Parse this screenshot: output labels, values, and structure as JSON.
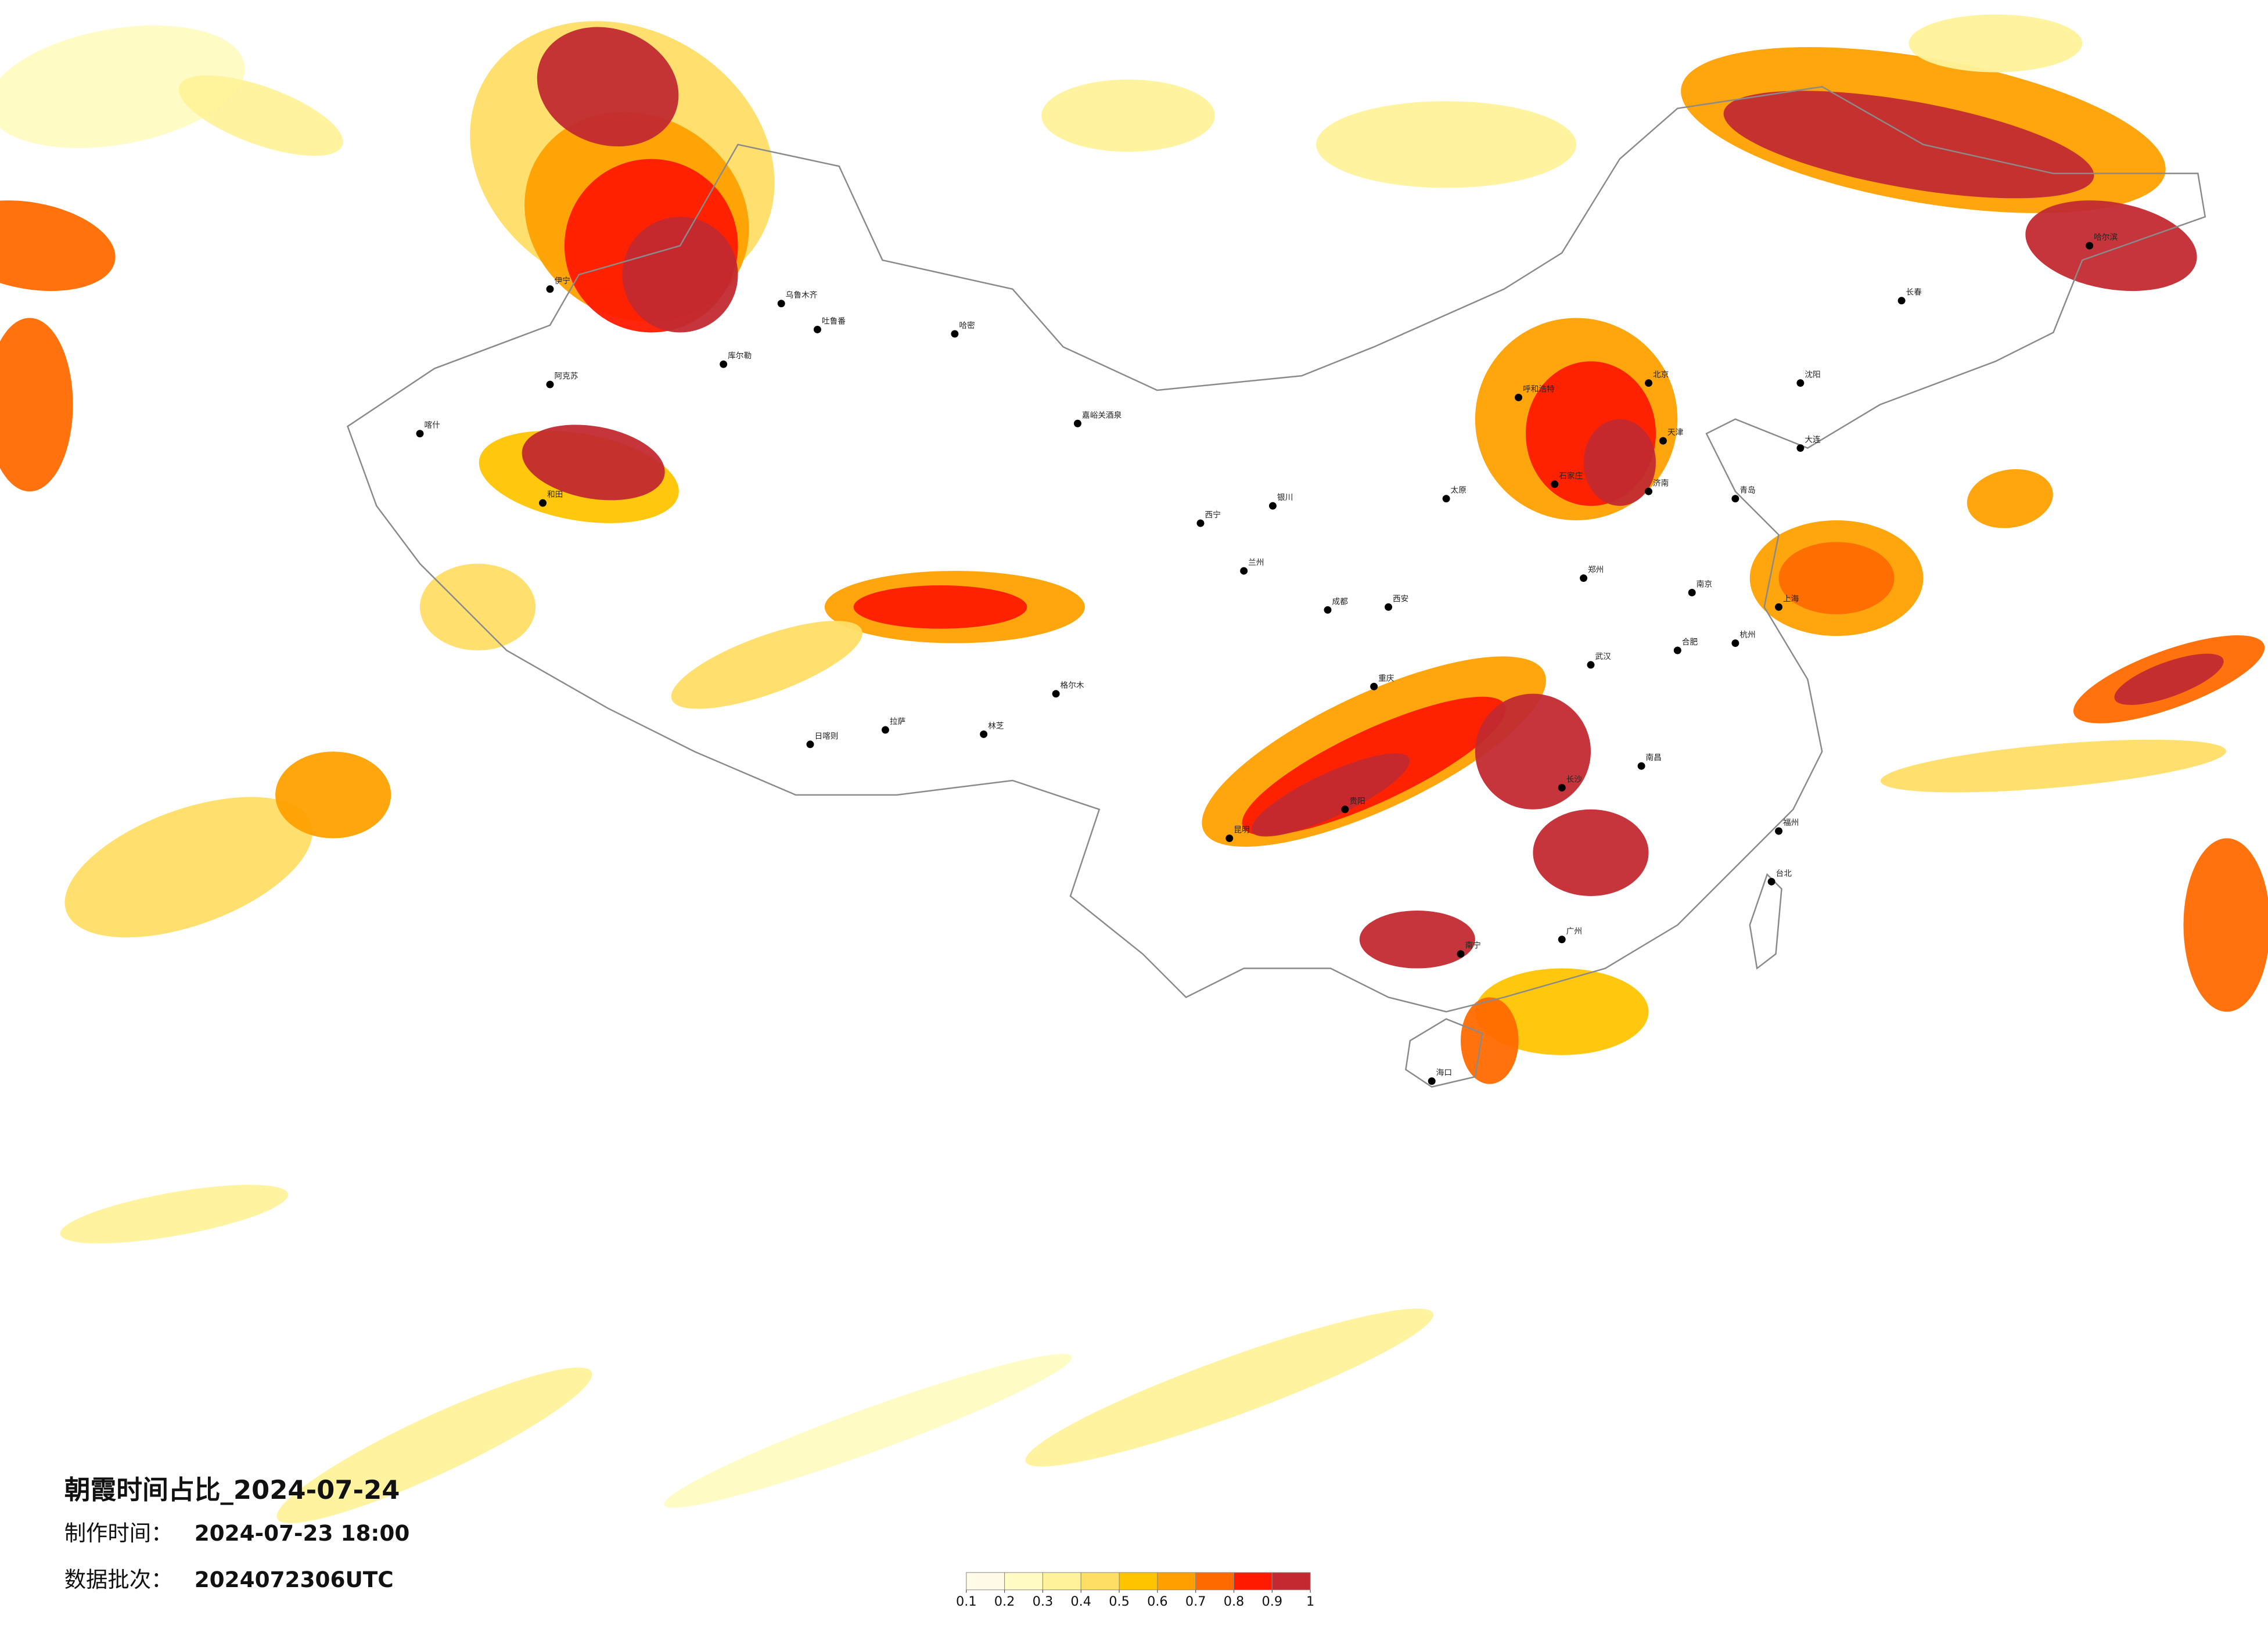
{
  "title": "朝霞时间占比_2024-07-24",
  "made_label": "制作时间：",
  "made_value": "2024-07-23 18:00",
  "batch_label": "数据批次：",
  "batch_value": "2024072306UTC",
  "legend": {
    "ticks": [
      0.1,
      0.2,
      0.3,
      0.4,
      0.5,
      0.6,
      0.7,
      0.8,
      0.9,
      1
    ],
    "colors": [
      "#fffbe8",
      "#fffbc2",
      "#fff29a",
      "#ffde66",
      "#ffc400",
      "#ffa000",
      "#ff6a00",
      "#ff1a00",
      "#c22a30"
    ]
  },
  "cities": [
    "乌鲁木齐",
    "吐鲁番",
    "哈密",
    "库尔勒",
    "阿克苏",
    "喀什",
    "和田",
    "伊宁",
    "嘉峪关酒泉",
    "格尔木",
    "西宁",
    "银川",
    "呼和浩特",
    "北京",
    "天津",
    "石家庄",
    "太原",
    "济南",
    "郑州",
    "西安",
    "兰州",
    "成都",
    "重庆",
    "贵阳",
    "昆明",
    "南宁",
    "广州",
    "长沙",
    "武汉",
    "南昌",
    "福州",
    "杭州",
    "上海",
    "南京",
    "合肥",
    "沈阳",
    "长春",
    "哈尔滨",
    "拉萨",
    "日喀则",
    "林芝",
    "海口",
    "台北",
    "大连",
    "青岛"
  ]
}
